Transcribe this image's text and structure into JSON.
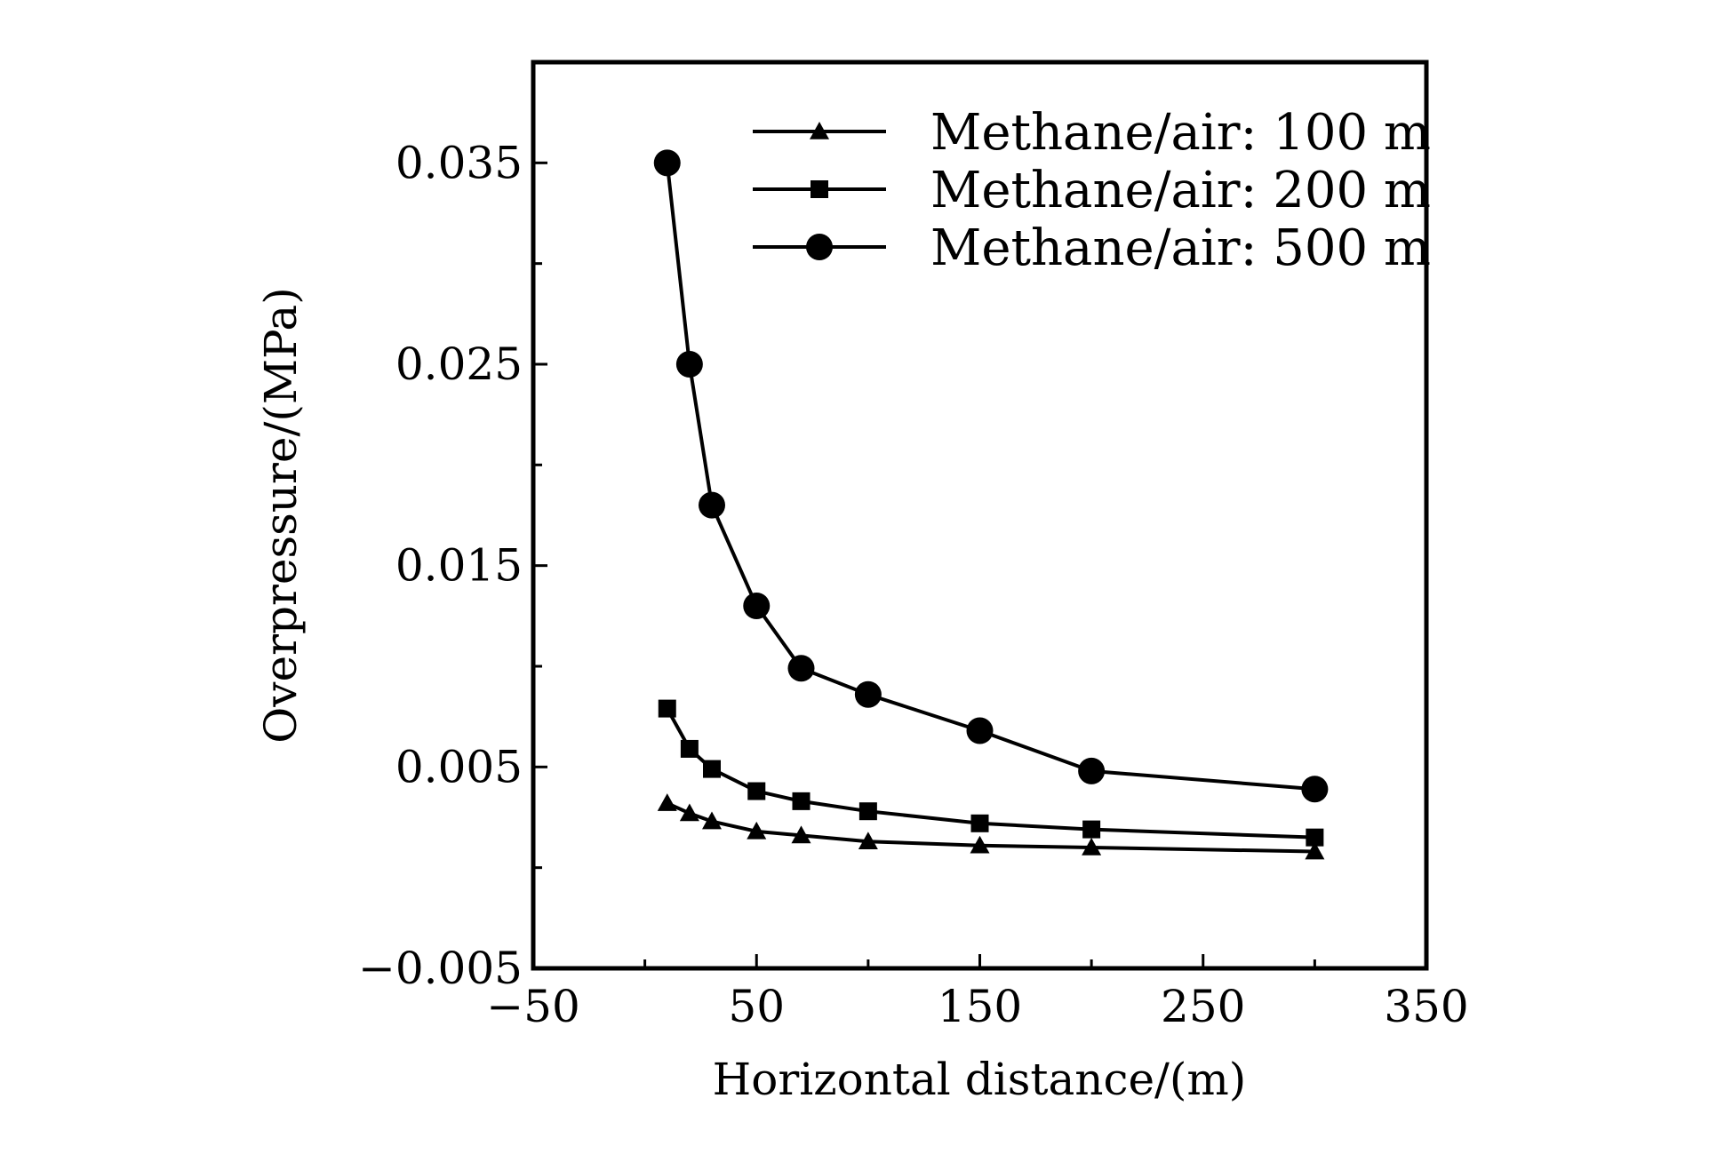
{
  "chart_data": {
    "type": "line",
    "title": "",
    "xlabel": "Horizontal distance/(m)",
    "ylabel": "Overpressure/(MPa)",
    "xlim": [
      -50,
      350
    ],
    "ylim": [
      -0.005,
      0.04
    ],
    "xticks": [
      -50,
      50,
      150,
      250,
      350
    ],
    "xtick_labels": [
      "−50",
      "50",
      "150",
      "250",
      "350"
    ],
    "yticks": [
      -0.005,
      0.005,
      0.015,
      0.025,
      0.035
    ],
    "ytick_labels": [
      "−0.005",
      "0.005",
      "0.015",
      "0.025",
      "0.035"
    ],
    "x_minor_ticks": [
      0,
      100,
      200,
      300
    ],
    "y_minor_ticks": [
      0.0,
      0.01,
      0.02,
      0.03
    ],
    "grid": false,
    "legend_position": "top-right",
    "color": "#000000",
    "x": [
      10,
      20,
      30,
      50,
      70,
      100,
      150,
      200,
      300
    ],
    "series": [
      {
        "name": "Methane/air: 100 m",
        "marker": "triangle",
        "values": [
          0.0032,
          0.0027,
          0.0023,
          0.0018,
          0.0016,
          0.0013,
          0.0011,
          0.001,
          0.0008
        ]
      },
      {
        "name": "Methane/air: 200 m",
        "marker": "square",
        "values": [
          0.0079,
          0.0059,
          0.0049,
          0.0038,
          0.0033,
          0.0028,
          0.0022,
          0.0019,
          0.0015
        ]
      },
      {
        "name": "Methane/air: 500 m",
        "marker": "circle",
        "values": [
          0.035,
          0.025,
          0.018,
          0.013,
          0.0099,
          0.0086,
          0.0068,
          0.0048,
          0.0039
        ]
      }
    ]
  }
}
